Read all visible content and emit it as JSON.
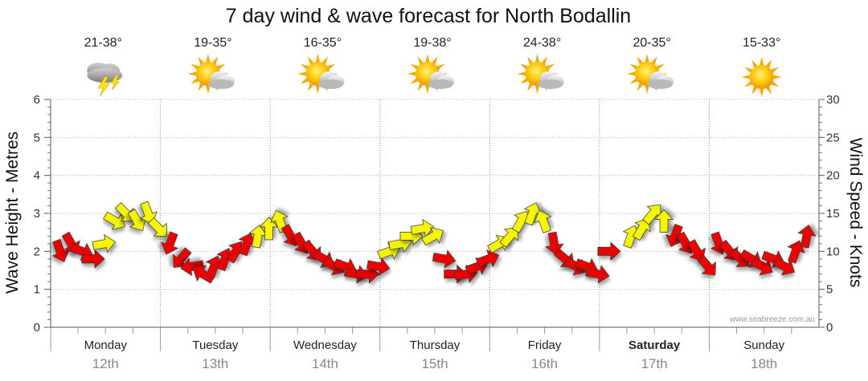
{
  "chart_data": {
    "type": "scatter",
    "title": "7 day wind & wave forecast for North Bodallin",
    "ylabel_left": "Wave Height - Metres",
    "ylabel_right": "Wind Speed - Knots",
    "ylim_left": [
      0,
      6
    ],
    "ylim_right": [
      0,
      30
    ],
    "left_ticks": [
      "0",
      "1",
      "2",
      "3",
      "4",
      "5",
      "6"
    ],
    "right_ticks": [
      "0",
      "5",
      "10",
      "15",
      "20",
      "25",
      "30"
    ],
    "credit": "www.seabreeze.com.au",
    "days": [
      {
        "day": "Monday",
        "date": "12th",
        "temp": "21-38°",
        "icon": "storm-cloud-icon",
        "bold": false
      },
      {
        "day": "Tuesday",
        "date": "13th",
        "temp": "19-35°",
        "icon": "sun-cloud-icon",
        "bold": false
      },
      {
        "day": "Wednesday",
        "date": "14th",
        "temp": "16-35°",
        "icon": "sun-cloud-icon",
        "bold": false
      },
      {
        "day": "Thursday",
        "date": "15th",
        "temp": "19-38°",
        "icon": "sun-cloud-icon",
        "bold": false
      },
      {
        "day": "Friday",
        "date": "16th",
        "temp": "24-38°",
        "icon": "sun-cloud-icon",
        "bold": false
      },
      {
        "day": "Saturday",
        "date": "17th",
        "temp": "20-35°",
        "icon": "sun-cloud-icon",
        "bold": true
      },
      {
        "day": "Sunday",
        "date": "18th",
        "temp": "15-33°",
        "icon": "sun-icon",
        "bold": false
      }
    ],
    "colors": {
      "strong": "#ee0000",
      "moderate": "#f5f500",
      "outline": "#333333",
      "grid": "#aaaaaa"
    },
    "series": [
      {
        "name": "wind",
        "unit": "knots",
        "points": [
          {
            "t": 0.0,
            "speed": 10,
            "dir": 340,
            "level": "strong"
          },
          {
            "t": 0.1,
            "speed": 11,
            "dir": 330,
            "level": "strong"
          },
          {
            "t": 0.2,
            "speed": 10,
            "dir": 290,
            "level": "strong"
          },
          {
            "t": 0.3,
            "speed": 9,
            "dir": 270,
            "level": "strong"
          },
          {
            "t": 0.4,
            "speed": 11,
            "dir": 260,
            "level": "moderate"
          },
          {
            "t": 0.5,
            "speed": 14,
            "dir": 300,
            "level": "moderate"
          },
          {
            "t": 0.6,
            "speed": 15,
            "dir": 315,
            "level": "moderate"
          },
          {
            "t": 0.7,
            "speed": 14,
            "dir": 330,
            "level": "moderate"
          },
          {
            "t": 0.8,
            "speed": 15,
            "dir": 340,
            "level": "moderate"
          },
          {
            "t": 0.9,
            "speed": 13,
            "dir": 315,
            "level": "moderate"
          },
          {
            "t": 1.0,
            "speed": 11,
            "dir": 20,
            "level": "strong"
          },
          {
            "t": 1.1,
            "speed": 9,
            "dir": 40,
            "level": "strong"
          },
          {
            "t": 1.2,
            "speed": 8,
            "dir": 80,
            "level": "strong"
          },
          {
            "t": 1.3,
            "speed": 7,
            "dir": 120,
            "level": "strong"
          },
          {
            "t": 1.4,
            "speed": 8,
            "dir": 200,
            "level": "strong"
          },
          {
            "t": 1.5,
            "speed": 9,
            "dir": 200,
            "level": "strong"
          },
          {
            "t": 1.6,
            "speed": 10,
            "dir": 210,
            "level": "strong"
          },
          {
            "t": 1.7,
            "speed": 11,
            "dir": 200,
            "level": "strong"
          },
          {
            "t": 1.8,
            "speed": 12,
            "dir": 190,
            "level": "moderate"
          },
          {
            "t": 1.9,
            "speed": 13,
            "dir": 180,
            "level": "moderate"
          },
          {
            "t": 2.0,
            "speed": 14,
            "dir": 160,
            "level": "moderate"
          },
          {
            "t": 2.1,
            "speed": 12,
            "dir": 330,
            "level": "strong"
          },
          {
            "t": 2.2,
            "speed": 11,
            "dir": 330,
            "level": "strong"
          },
          {
            "t": 2.3,
            "speed": 10,
            "dir": 320,
            "level": "strong"
          },
          {
            "t": 2.4,
            "speed": 9,
            "dir": 300,
            "level": "strong"
          },
          {
            "t": 2.5,
            "speed": 8,
            "dir": 300,
            "level": "strong"
          },
          {
            "t": 2.6,
            "speed": 8,
            "dir": 290,
            "level": "strong"
          },
          {
            "t": 2.7,
            "speed": 7,
            "dir": 280,
            "level": "strong"
          },
          {
            "t": 2.8,
            "speed": 7,
            "dir": 270,
            "level": "strong"
          },
          {
            "t": 2.9,
            "speed": 8,
            "dir": 280,
            "level": "strong"
          },
          {
            "t": 3.0,
            "speed": 10,
            "dir": 250,
            "level": "moderate"
          },
          {
            "t": 3.1,
            "speed": 11,
            "dir": 260,
            "level": "moderate"
          },
          {
            "t": 3.2,
            "speed": 12,
            "dir": 270,
            "level": "moderate"
          },
          {
            "t": 3.3,
            "speed": 13,
            "dir": 260,
            "level": "moderate"
          },
          {
            "t": 3.4,
            "speed": 12,
            "dir": 240,
            "level": "moderate"
          },
          {
            "t": 3.5,
            "speed": 9,
            "dir": 280,
            "level": "strong"
          },
          {
            "t": 3.6,
            "speed": 7,
            "dir": 270,
            "level": "strong"
          },
          {
            "t": 3.7,
            "speed": 7,
            "dir": 260,
            "level": "strong"
          },
          {
            "t": 3.8,
            "speed": 8,
            "dir": 250,
            "level": "strong"
          },
          {
            "t": 3.9,
            "speed": 9,
            "dir": 250,
            "level": "strong"
          },
          {
            "t": 4.0,
            "speed": 11,
            "dir": 240,
            "level": "moderate"
          },
          {
            "t": 4.1,
            "speed": 12,
            "dir": 220,
            "level": "moderate"
          },
          {
            "t": 4.2,
            "speed": 14,
            "dir": 210,
            "level": "moderate"
          },
          {
            "t": 4.3,
            "speed": 15,
            "dir": 200,
            "level": "moderate"
          },
          {
            "t": 4.4,
            "speed": 14,
            "dir": 160,
            "level": "moderate"
          },
          {
            "t": 4.5,
            "speed": 11,
            "dir": 350,
            "level": "strong"
          },
          {
            "t": 4.6,
            "speed": 9,
            "dir": 310,
            "level": "strong"
          },
          {
            "t": 4.7,
            "speed": 8,
            "dir": 300,
            "level": "strong"
          },
          {
            "t": 4.8,
            "speed": 8,
            "dir": 290,
            "level": "strong"
          },
          {
            "t": 4.9,
            "speed": 7,
            "dir": 280,
            "level": "strong"
          },
          {
            "t": 5.0,
            "speed": 10,
            "dir": 270,
            "level": "strong"
          },
          {
            "t": 5.2,
            "speed": 12,
            "dir": 200,
            "level": "moderate"
          },
          {
            "t": 5.3,
            "speed": 13,
            "dir": 210,
            "level": "moderate"
          },
          {
            "t": 5.4,
            "speed": 15,
            "dir": 220,
            "level": "moderate"
          },
          {
            "t": 5.5,
            "speed": 14,
            "dir": 180,
            "level": "moderate"
          },
          {
            "t": 5.6,
            "speed": 12,
            "dir": 20,
            "level": "strong"
          },
          {
            "t": 5.7,
            "speed": 11,
            "dir": 330,
            "level": "strong"
          },
          {
            "t": 5.8,
            "speed": 10,
            "dir": 330,
            "level": "strong"
          },
          {
            "t": 5.9,
            "speed": 8,
            "dir": 320,
            "level": "strong"
          },
          {
            "t": 6.0,
            "speed": 11,
            "dir": 340,
            "level": "strong"
          },
          {
            "t": 6.1,
            "speed": 10,
            "dir": 320,
            "level": "strong"
          },
          {
            "t": 6.2,
            "speed": 9,
            "dir": 310,
            "level": "strong"
          },
          {
            "t": 6.3,
            "speed": 9,
            "dir": 300,
            "level": "strong"
          },
          {
            "t": 6.4,
            "speed": 8,
            "dir": 300,
            "level": "strong"
          },
          {
            "t": 6.5,
            "speed": 9,
            "dir": 290,
            "level": "strong"
          },
          {
            "t": 6.6,
            "speed": 8,
            "dir": 300,
            "level": "strong"
          },
          {
            "t": 6.7,
            "speed": 10,
            "dir": 200,
            "level": "strong"
          },
          {
            "t": 6.8,
            "speed": 12,
            "dir": 190,
            "level": "strong"
          }
        ]
      }
    ]
  }
}
